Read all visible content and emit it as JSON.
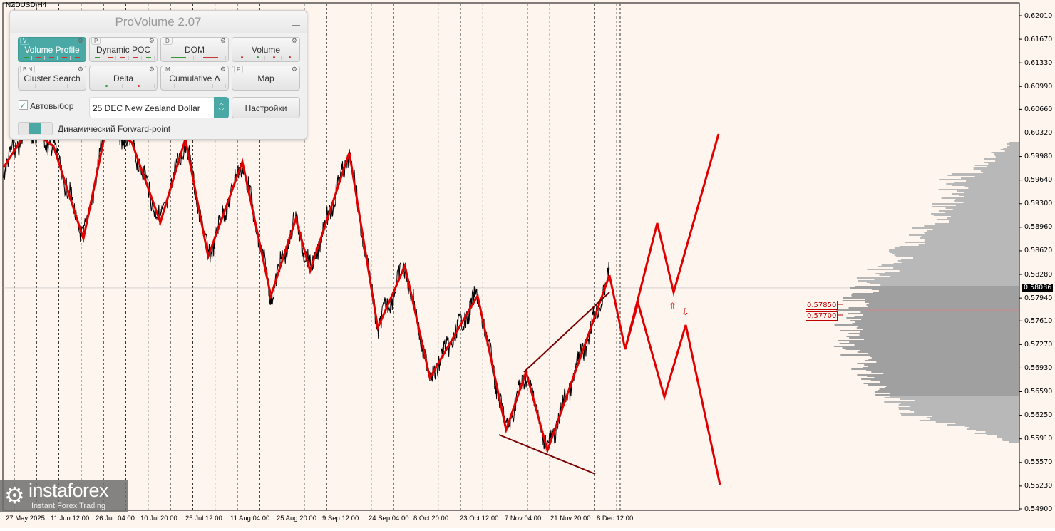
{
  "chart": {
    "symbol": "NZDUSD,H4",
    "current_price": "0.58086",
    "price_ticks": [
      "0.62010",
      "0.61670",
      "0.61330",
      "0.60990",
      "0.60660",
      "0.60320",
      "0.59980",
      "0.59640",
      "0.59300",
      "0.58960",
      "0.58620",
      "0.58280",
      "0.57940",
      "0.57610",
      "0.57270",
      "0.56930",
      "0.56590",
      "0.56250",
      "0.55910",
      "0.55570",
      "0.55230",
      "0.54900"
    ],
    "time_labels": [
      "27 May 2025",
      "11 Jun 12:00",
      "26 Jun 04:00",
      "10 Jul 20:00",
      "25 Jul 12:00",
      "11 Aug 04:00",
      "25 Aug 20:00",
      "9 Sep 12:00",
      "24 Sep 04:00",
      "8 Oct 20:00",
      "23 Oct 12:00",
      "7 Nov 04:00",
      "21 Nov 20:00",
      "8 Dec 12:00"
    ],
    "levels": [
      "0.57850",
      "0.57700"
    ],
    "colors": {
      "background": "#fff5ef",
      "zigzag": "#e00000",
      "price": "#000000",
      "profile": "#a8a8a8",
      "accent": "#4aa9a5"
    }
  },
  "panel": {
    "title": "ProVolume 2.07",
    "buttons": [
      {
        "label": "Volume Profile",
        "key": "V",
        "active": true
      },
      {
        "label": "Dynamic POC",
        "key": "P"
      },
      {
        "label": "DOM",
        "key": "D"
      },
      {
        "label": "Volume",
        "key": ""
      },
      {
        "label": "Cluster Search",
        "key": "B  N"
      },
      {
        "label": "Delta",
        "key": ""
      },
      {
        "label": "Cumulative Δ",
        "key": "M"
      },
      {
        "label": "Map",
        "key": "F"
      }
    ],
    "auto_select_label": "Автовыбор",
    "auto_select_checked": true,
    "instrument": "25 DEC New Zealand Dollar",
    "settings_label": "Настройки",
    "forward_point_label": "Динамический Forward-point"
  },
  "logo": {
    "name": "instaforex",
    "tagline": "Instant Forex Trading"
  }
}
